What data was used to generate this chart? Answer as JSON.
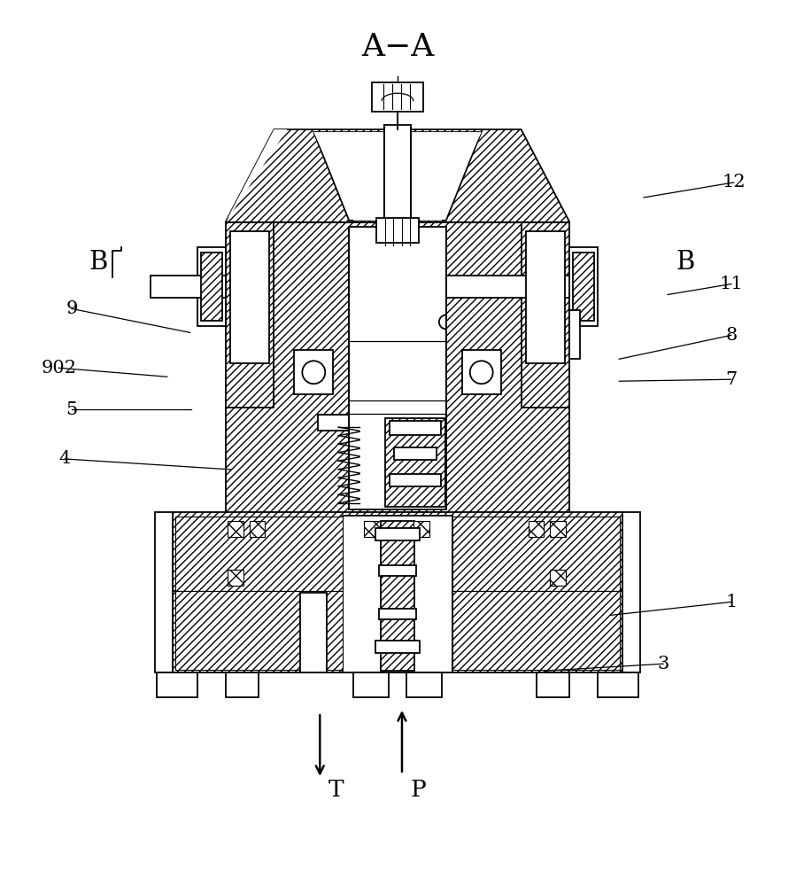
{
  "bg_color": "#ffffff",
  "line_color": "#000000",
  "labels": {
    "A_A": "A−A",
    "B_left": "B",
    "B_right": "B",
    "num_1": "1",
    "num_3": "3",
    "num_4": "4",
    "num_5": "5",
    "num_7": "7",
    "num_8": "8",
    "num_9": "9",
    "num_902": "902",
    "num_11": "11",
    "num_12": "12",
    "T_label": "T",
    "P_label": "P"
  },
  "figsize": [
    8.99,
    10.0
  ],
  "hatch": "////"
}
